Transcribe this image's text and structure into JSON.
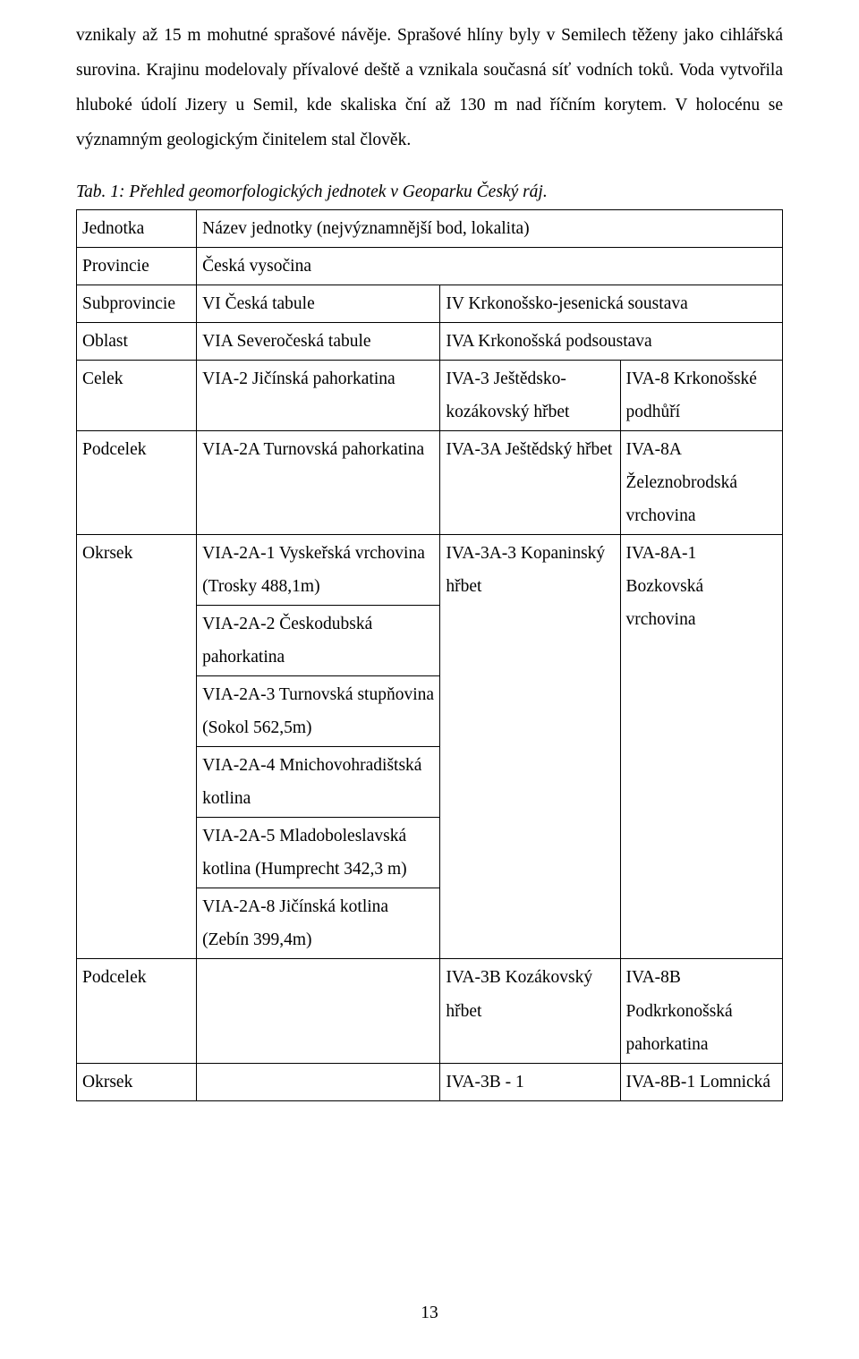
{
  "paragraph1": "vznikaly až 15 m mohutné sprašové návěje. Sprašové hlíny byly v Semilech těženy jako cihlářská surovina. Krajinu modelovaly přívalové deště a vznikala současná síť vodních toků. Voda vytvořila hluboké údolí Jizery u Semil, kde skaliska ční až 130 m nad říčním korytem. V holocénu se významným geologickým činitelem stal člověk.",
  "caption": "Tab. 1: Přehled geomorfologických jednotek v Geoparku Český ráj.",
  "table": {
    "col_widths": [
      "17%",
      "34.5%",
      "25.5%",
      "23%"
    ],
    "rows": [
      {
        "c0": "Jednotka",
        "c1_span3": "Název jednotky (nejvýznamnější bod, lokalita)"
      },
      {
        "c0": "Provincie",
        "c1_span3": " Česká vysočina"
      },
      {
        "c0": "Subprovincie",
        "c1": " VI Česká tabule",
        "c2_span2": " IV Krkonošsko-jesenická soustava"
      },
      {
        "c0": "Oblast",
        "c1": " VIA Severočeská tabule",
        "c2_span2": " IVA Krkonošská podsoustava"
      },
      {
        "c0": "Celek",
        "c1": " VIA-2 Jičínská pahorkatina",
        "c2": " IVA-3 Ještědsko-kozákovský hřbet",
        "c3": " IVA-8 Krkonošské podhůří"
      },
      {
        "c0": "Podcelek",
        "c1": " VIA-2A Turnovská pahorkatina",
        "c2": " IVA-3A Ještědský hřbet",
        "c3": "IVA-8A Železnobrodská vrchovina"
      },
      {
        "c0": "Okrsek",
        "c1": "VIA-2A-1 Vyskeřská vrchovina (Trosky 488,1m)",
        "c2": "IVA-3A-3 Kopaninský hřbet",
        "c3": "IVA-8A-1 Bozkovská vrchovina"
      },
      {
        "c0": "",
        "c1": "VIA-2A-2 Českodubská pahorkatina",
        "c2": "",
        "c3": ""
      },
      {
        "c0": "",
        "c1": "VIA-2A-3 Turnovská stupňovina (Sokol 562,5m)",
        "c2": "",
        "c3": ""
      },
      {
        "c0": "",
        "c1": "VIA-2A-4 Mnichovohradištská kotlina",
        "c2": "",
        "c3": ""
      },
      {
        "c0": "",
        "c1": "VIA-2A-5 Mladoboleslavská  kotlina (Humprecht 342,3 m)",
        "c2": "",
        "c3": ""
      },
      {
        "c0": "",
        "c1": "VIA-2A-8 Jičínská kotlina (Zebín 399,4m)",
        "c2": "",
        "c3": ""
      },
      {
        "c0": "Podcelek",
        "c1": "",
        "c2": " IVA-3B Kozákovský hřbet",
        "c3": " IVA-8B Podkrkonošská pahorkatina"
      },
      {
        "c0": "Okrsek",
        "c1": "",
        "c2": "IVA-3B - 1",
        "c3": "IVA-8B-1 Lomnická"
      }
    ]
  },
  "page_number": "13"
}
